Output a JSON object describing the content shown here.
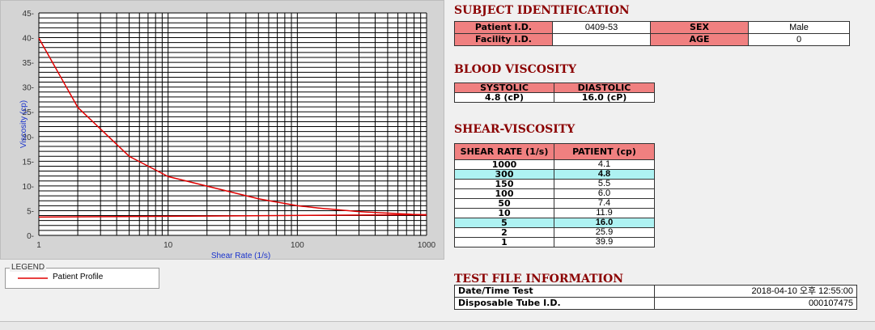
{
  "chart_data": {
    "type": "line",
    "xlabel": "Shear Rate (1/s)",
    "ylabel": "Viscosity (cp)",
    "xscale": "log",
    "xlim": [
      1,
      1000
    ],
    "ylim": [
      0,
      45
    ],
    "x_ticks": [
      "1",
      "10",
      "100",
      "1000"
    ],
    "y_ticks": [
      "0",
      "5",
      "10",
      "15",
      "20",
      "25",
      "30",
      "35",
      "40",
      "45"
    ],
    "grid": true,
    "series": [
      {
        "name": "Patient Profile",
        "color": "#e00000",
        "x": [
          1,
          2,
          5,
          10,
          50,
          100,
          150,
          300,
          1000
        ],
        "y": [
          39.9,
          25.9,
          16.0,
          11.9,
          7.4,
          6.0,
          5.5,
          4.8,
          4.1
        ]
      },
      {
        "name": "",
        "color": "#e00000",
        "x": [
          1,
          1000
        ],
        "y": [
          3.7,
          4.2
        ]
      }
    ]
  },
  "legend": {
    "title": "LEGEND",
    "item": "Patient Profile"
  },
  "subject": {
    "title": "SUBJECT IDENTIFICATION",
    "patient_id_label": "Patient I.D.",
    "patient_id": "0409-53",
    "sex_label": "SEX",
    "sex": "Male",
    "facility_id_label": "Facility I.D.",
    "facility_id": "",
    "age_label": "AGE",
    "age": "0"
  },
  "blood": {
    "title": "BLOOD VISCOSITY",
    "systolic_label": "SYSTOLIC",
    "systolic": "4.8 (cP)",
    "diastolic_label": "DIASTOLIC",
    "diastolic": "16.0 (cP)"
  },
  "shear": {
    "title": "SHEAR-VISCOSITY",
    "col1": "SHEAR RATE (1/s)",
    "col2": "PATIENT (cp)",
    "rows": [
      {
        "rate": "1000",
        "val": "4.1",
        "hl": false
      },
      {
        "rate": "300",
        "val": "4.8",
        "hl": true
      },
      {
        "rate": "150",
        "val": "5.5",
        "hl": false
      },
      {
        "rate": "100",
        "val": "6.0",
        "hl": false
      },
      {
        "rate": "50",
        "val": "7.4",
        "hl": false
      },
      {
        "rate": "10",
        "val": "11.9",
        "hl": false
      },
      {
        "rate": "5",
        "val": "16.0",
        "hl": true
      },
      {
        "rate": "2",
        "val": "25.9",
        "hl": false
      },
      {
        "rate": "1",
        "val": "39.9",
        "hl": false
      }
    ]
  },
  "testfile": {
    "title": "TEST FILE INFORMATION",
    "datetime_label": "Date/Time Test",
    "datetime": "2018-04-10   오후 12:55:00",
    "tube_label": "Disposable Tube I.D.",
    "tube": "000107475"
  }
}
